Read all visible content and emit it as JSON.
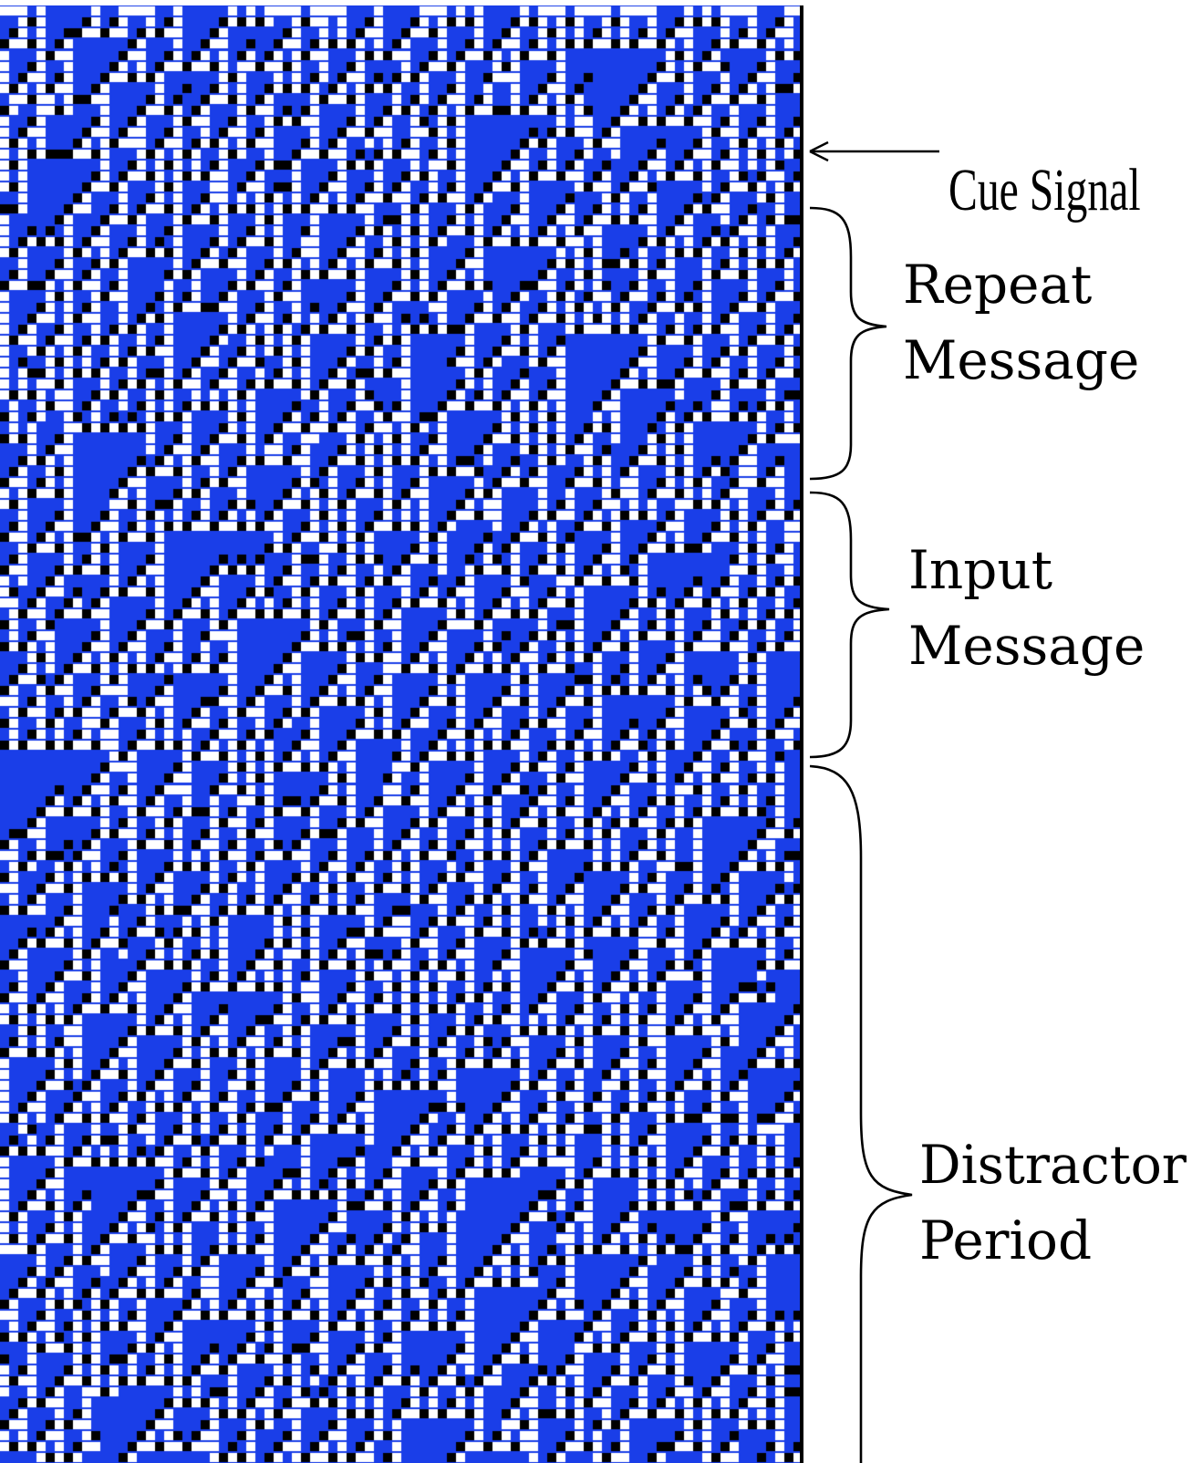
{
  "labels": {
    "cue_signal": "Cue Signal",
    "repeat_line1": "Repeat",
    "repeat_line2": "Message",
    "input_line1": "Input",
    "input_line2": "Message",
    "distractor_line1": "Distractor",
    "distractor_line2": "Period"
  },
  "colors": {
    "background": "#1a3ee8",
    "bright_cell": "#ffffff",
    "dark_cell": "#000000",
    "border": "#000000",
    "annotation": "#000000"
  },
  "pattern": {
    "columns": 88,
    "rows": 133,
    "rule": 110
  }
}
